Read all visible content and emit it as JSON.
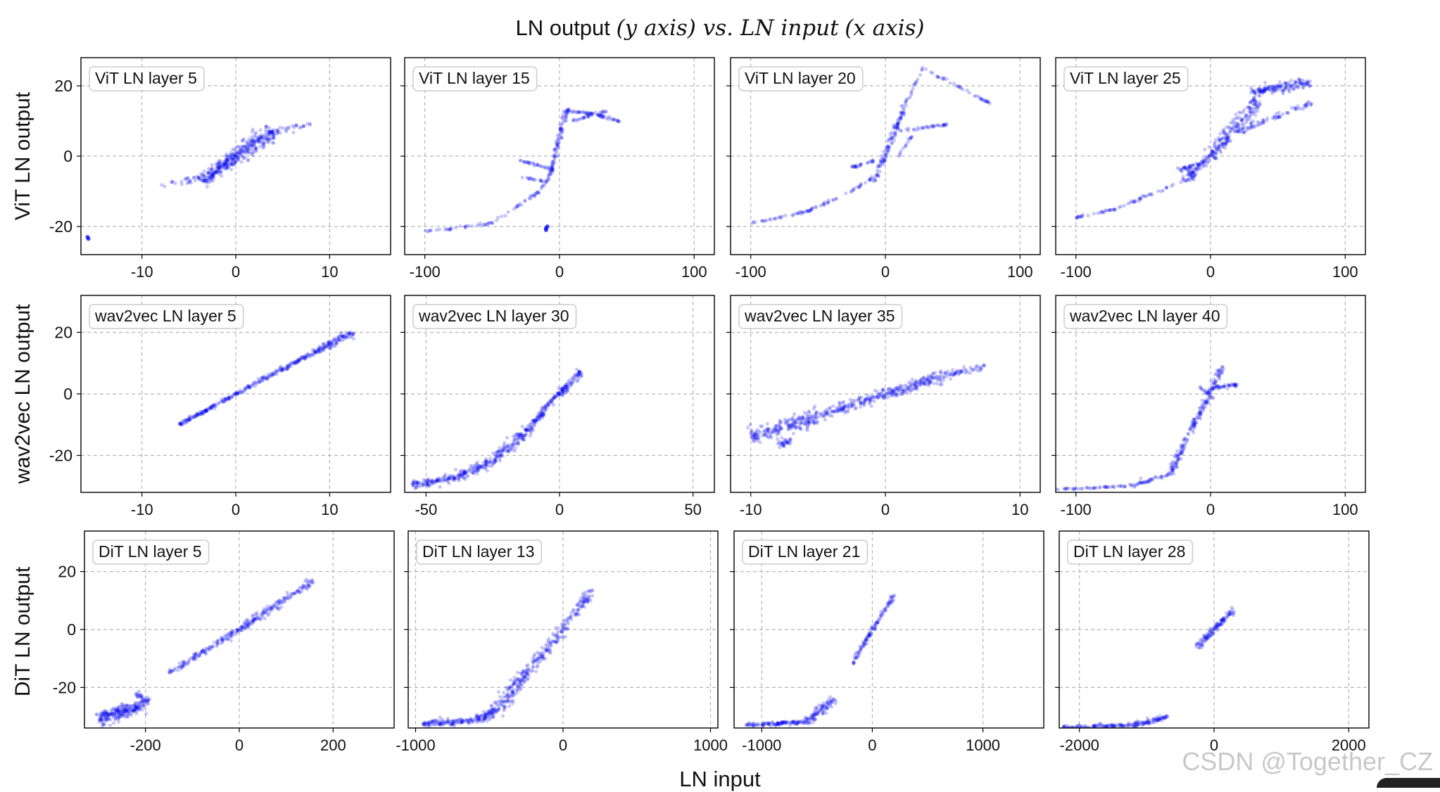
{
  "figure": {
    "title_main": "LN output",
    "title_y": "(y axis) vs. LN input",
    "title_x": "(x axis)",
    "xlabel": "LN input",
    "watermark": "CSDN @Together_CZ"
  },
  "colors": {
    "points": "#0000ee",
    "grid": "#b5b5b5",
    "axes": "#000000",
    "label_box": "#cccccc"
  },
  "row_labels": [
    "ViT LN output",
    "wav2vec LN output",
    "DiT LN output"
  ],
  "chart_data": [
    {
      "type": "scatter",
      "row": 0,
      "col": 0,
      "title": "ViT LN layer 5",
      "xlim": [
        -16.5,
        16.5
      ],
      "ylim": [
        -28,
        28
      ],
      "xticks": [
        -10,
        0,
        10
      ],
      "xticklabels": [
        "-10",
        "0",
        "10"
      ],
      "yticks": [
        -20,
        0,
        20
      ],
      "yticklabels": [
        "-20",
        "0",
        "20"
      ],
      "segments": [
        {
          "x": [
            -3.5,
            0
          ],
          "y": [
            -7,
            0
          ],
          "w": 3,
          "n": 180
        },
        {
          "x": [
            0,
            4
          ],
          "y": [
            0,
            7
          ],
          "w": 3.5,
          "n": 180
        },
        {
          "x": [
            -8,
            -3
          ],
          "y": [
            -8.5,
            -6
          ],
          "w": 1.5,
          "n": 30
        },
        {
          "x": [
            4,
            8
          ],
          "y": [
            7,
            9
          ],
          "w": 1.5,
          "n": 30
        }
      ],
      "points": [
        [
          -15.8,
          -23
        ],
        [
          -15.7,
          -23.5
        ]
      ]
    },
    {
      "type": "scatter",
      "row": 0,
      "col": 1,
      "title": "ViT LN layer 15",
      "xlim": [
        -115,
        115
      ],
      "ylim": [
        -28,
        28
      ],
      "xticks": [
        -100,
        0,
        100
      ],
      "xticklabels": [
        "-100",
        "0",
        "100"
      ],
      "yticks": [
        -20,
        0,
        20
      ],
      "yticklabels": [],
      "segments": [
        {
          "x": [
            -100,
            -50
          ],
          "y": [
            -21.5,
            -19
          ],
          "w": 0.5,
          "n": 35
        },
        {
          "x": [
            -50,
            -15
          ],
          "y": [
            -19,
            -10
          ],
          "w": 0.6,
          "n": 30
        },
        {
          "x": [
            -15,
            -5
          ],
          "y": [
            -10,
            -4
          ],
          "w": 0.6,
          "n": 15
        },
        {
          "x": [
            -7,
            6
          ],
          "y": [
            -5,
            14
          ],
          "w": 1.2,
          "n": 90
        },
        {
          "x": [
            5,
            25
          ],
          "y": [
            13,
            12
          ],
          "w": 0.6,
          "n": 30
        },
        {
          "x": [
            25,
            45
          ],
          "y": [
            12,
            10
          ],
          "w": 0.6,
          "n": 30
        },
        {
          "x": [
            10,
            35
          ],
          "y": [
            10,
            13
          ],
          "w": 0.5,
          "n": 25
        },
        {
          "x": [
            -30,
            -5
          ],
          "y": [
            -1,
            -4
          ],
          "w": 0.6,
          "n": 30
        },
        {
          "x": [
            -28,
            -12
          ],
          "y": [
            -6,
            -7
          ],
          "w": 0.5,
          "n": 15
        }
      ],
      "points": [
        [
          -10,
          -20.5
        ],
        [
          -10,
          -21
        ],
        [
          -9,
          -20
        ]
      ]
    },
    {
      "type": "scatter",
      "row": 0,
      "col": 2,
      "title": "ViT LN layer 20",
      "xlim": [
        -115,
        115
      ],
      "ylim": [
        -28,
        28
      ],
      "xticks": [
        -100,
        0,
        100
      ],
      "xticklabels": [
        "-100",
        "0",
        "100"
      ],
      "yticks": [
        -20,
        0,
        20
      ],
      "yticklabels": [],
      "segments": [
        {
          "x": [
            -100,
            -60
          ],
          "y": [
            -19,
            -16
          ],
          "w": 0.5,
          "n": 30
        },
        {
          "x": [
            -60,
            -25
          ],
          "y": [
            -16,
            -10
          ],
          "w": 0.6,
          "n": 30
        },
        {
          "x": [
            -25,
            -5
          ],
          "y": [
            -10,
            -5
          ],
          "w": 0.6,
          "n": 20
        },
        {
          "x": [
            -8,
            15
          ],
          "y": [
            -7,
            15
          ],
          "w": 1.3,
          "n": 110
        },
        {
          "x": [
            15,
            28
          ],
          "y": [
            15,
            25
          ],
          "w": 0.6,
          "n": 20
        },
        {
          "x": [
            28,
            78
          ],
          "y": [
            25,
            15
          ],
          "w": 0.6,
          "n": 40
        },
        {
          "x": [
            10,
            45
          ],
          "y": [
            7,
            9
          ],
          "w": 0.6,
          "n": 35
        },
        {
          "x": [
            -25,
            -5
          ],
          "y": [
            -3,
            -1
          ],
          "w": 0.6,
          "n": 25
        },
        {
          "x": [
            10,
            20
          ],
          "y": [
            0,
            6
          ],
          "w": 0.5,
          "n": 15
        }
      ],
      "points": []
    },
    {
      "type": "scatter",
      "row": 0,
      "col": 3,
      "title": "ViT LN layer 25",
      "xlim": [
        -115,
        115
      ],
      "ylim": [
        -28,
        28
      ],
      "xticks": [
        -100,
        0,
        100
      ],
      "xticklabels": [
        "-100",
        "0",
        "100"
      ],
      "yticks": [
        -20,
        0,
        20
      ],
      "yticklabels": [],
      "segments": [
        {
          "x": [
            -100,
            -70
          ],
          "y": [
            -17.5,
            -15
          ],
          "w": 0.6,
          "n": 30
        },
        {
          "x": [
            -70,
            -20
          ],
          "y": [
            -15,
            -7
          ],
          "w": 0.6,
          "n": 35
        },
        {
          "x": [
            -20,
            0
          ],
          "y": [
            -7,
            0
          ],
          "w": 2,
          "n": 80
        },
        {
          "x": [
            0,
            35
          ],
          "y": [
            0,
            16
          ],
          "w": 3,
          "n": 180
        },
        {
          "x": [
            30,
            75
          ],
          "y": [
            18,
            21
          ],
          "w": 2,
          "n": 150
        },
        {
          "x": [
            40,
            75
          ],
          "y": [
            10,
            15
          ],
          "w": 1.5,
          "n": 40
        },
        {
          "x": [
            20,
            40
          ],
          "y": [
            7,
            10
          ],
          "w": 1.5,
          "n": 40
        },
        {
          "x": [
            -25,
            -5
          ],
          "y": [
            -4,
            -2
          ],
          "w": 1,
          "n": 30
        }
      ],
      "points": []
    },
    {
      "type": "scatter",
      "row": 1,
      "col": 0,
      "title": "wav2vec LN layer 5",
      "xlim": [
        -16.5,
        16.5
      ],
      "ylim": [
        -32,
        32
      ],
      "xticks": [
        -10,
        0,
        10
      ],
      "xticklabels": [
        "-10",
        "0",
        "10"
      ],
      "yticks": [
        -20,
        0,
        20
      ],
      "yticklabels": [
        "-20",
        "0",
        "20"
      ],
      "segments": [
        {
          "x": [
            -6,
            0
          ],
          "y": [
            -10,
            0
          ],
          "w": 0.7,
          "n": 120
        },
        {
          "x": [
            0,
            8
          ],
          "y": [
            0,
            13
          ],
          "w": 1,
          "n": 140
        },
        {
          "x": [
            8,
            12.5
          ],
          "y": [
            13,
            20
          ],
          "w": 1.6,
          "n": 110
        }
      ],
      "points": []
    },
    {
      "type": "scatter",
      "row": 1,
      "col": 1,
      "title": "wav2vec LN layer 30",
      "xlim": [
        -58,
        58
      ],
      "ylim": [
        -32,
        32
      ],
      "xticks": [
        -50,
        0,
        50
      ],
      "xticklabels": [
        "-50",
        "0",
        "50"
      ],
      "yticks": [
        -20,
        0,
        20
      ],
      "yticklabels": [],
      "segments": [
        {
          "x": [
            -55,
            -40
          ],
          "y": [
            -29.5,
            -27.5
          ],
          "w": 1.5,
          "n": 90
        },
        {
          "x": [
            -40,
            -25
          ],
          "y": [
            -27.5,
            -22
          ],
          "w": 2,
          "n": 110
        },
        {
          "x": [
            -25,
            -10
          ],
          "y": [
            -22,
            -10
          ],
          "w": 2.5,
          "n": 130
        },
        {
          "x": [
            -10,
            -3
          ],
          "y": [
            -10,
            -2
          ],
          "w": 1.5,
          "n": 70
        },
        {
          "x": [
            -3,
            0
          ],
          "y": [
            -2,
            0
          ],
          "w": 0.8,
          "n": 20
        },
        {
          "x": [
            0,
            8
          ],
          "y": [
            0,
            7
          ],
          "w": 1.6,
          "n": 80
        }
      ],
      "points": []
    },
    {
      "type": "scatter",
      "row": 1,
      "col": 2,
      "title": "wav2vec LN layer 35",
      "xlim": [
        -11.5,
        11.5
      ],
      "ylim": [
        -32,
        32
      ],
      "xticks": [
        -10,
        0,
        10
      ],
      "xticklabels": [
        "-10",
        "0",
        "10"
      ],
      "yticks": [
        -20,
        0,
        20
      ],
      "yticklabels": [],
      "segments": [
        {
          "x": [
            -10,
            -5
          ],
          "y": [
            -14,
            -7
          ],
          "w": 3.5,
          "n": 200
        },
        {
          "x": [
            -5,
            0
          ],
          "y": [
            -7,
            0
          ],
          "w": 2.5,
          "n": 140
        },
        {
          "x": [
            0,
            5
          ],
          "y": [
            0,
            6.5
          ],
          "w": 2.5,
          "n": 160
        },
        {
          "x": [
            5,
            7.5
          ],
          "y": [
            6.5,
            9
          ],
          "w": 1.5,
          "n": 40
        },
        {
          "x": [
            -8,
            -7
          ],
          "y": [
            -17,
            -15
          ],
          "w": 1.5,
          "n": 30
        }
      ],
      "points": []
    },
    {
      "type": "scatter",
      "row": 1,
      "col": 3,
      "title": "wav2vec LN layer 40",
      "xlim": [
        -115,
        115
      ],
      "ylim": [
        -32,
        32
      ],
      "xticks": [
        -100,
        0,
        100
      ],
      "xticklabels": [
        "-100",
        "0",
        "100"
      ],
      "yticks": [
        -20,
        0,
        20
      ],
      "yticklabels": [],
      "segments": [
        {
          "x": [
            -115,
            -60
          ],
          "y": [
            -31,
            -30
          ],
          "w": 0.4,
          "n": 45
        },
        {
          "x": [
            -60,
            -30
          ],
          "y": [
            -30,
            -26
          ],
          "w": 0.8,
          "n": 45
        },
        {
          "x": [
            -30,
            -15
          ],
          "y": [
            -26,
            -12
          ],
          "w": 1.5,
          "n": 70
        },
        {
          "x": [
            -15,
            0
          ],
          "y": [
            -12,
            0
          ],
          "w": 1.5,
          "n": 70
        },
        {
          "x": [
            0,
            8
          ],
          "y": [
            0,
            9
          ],
          "w": 1.2,
          "n": 45
        },
        {
          "x": [
            2,
            20
          ],
          "y": [
            2,
            3
          ],
          "w": 0.8,
          "n": 35
        },
        {
          "x": [
            -8,
            0
          ],
          "y": [
            2,
            0
          ],
          "w": 0.8,
          "n": 15
        }
      ],
      "points": []
    },
    {
      "type": "scatter",
      "row": 2,
      "col": 0,
      "title": "DiT LN layer 5",
      "xlim": [
        -330,
        330
      ],
      "ylim": [
        -34,
        34
      ],
      "xticks": [
        -200,
        0,
        200
      ],
      "xticklabels": [
        "-200",
        "0",
        "200"
      ],
      "yticks": [
        -20,
        0,
        20
      ],
      "yticklabels": [
        "-20",
        "0",
        "20"
      ],
      "segments": [
        {
          "x": [
            -300,
            -200
          ],
          "y": [
            -31,
            -26
          ],
          "w": 3,
          "n": 220
        },
        {
          "x": [
            -220,
            -190
          ],
          "y": [
            -22,
            -25
          ],
          "w": 1.5,
          "n": 30
        },
        {
          "x": [
            -150,
            0
          ],
          "y": [
            -15,
            0
          ],
          "w": 1.2,
          "n": 120
        },
        {
          "x": [
            0,
            160
          ],
          "y": [
            0,
            17
          ],
          "w": 1.8,
          "n": 150
        }
      ],
      "points": []
    },
    {
      "type": "scatter",
      "row": 2,
      "col": 1,
      "title": "DiT LN layer 13",
      "xlim": [
        -1050,
        1050
      ],
      "ylim": [
        -34,
        34
      ],
      "xticks": [
        -1000,
        0,
        1000
      ],
      "xticklabels": [
        "-1000",
        "0",
        "1000"
      ],
      "yticks": [
        -20,
        0,
        20
      ],
      "yticklabels": [],
      "segments": [
        {
          "x": [
            -950,
            -600
          ],
          "y": [
            -32.5,
            -31.5
          ],
          "w": 1.4,
          "n": 110
        },
        {
          "x": [
            -600,
            -450
          ],
          "y": [
            -31.5,
            -28
          ],
          "w": 2.2,
          "n": 80
        },
        {
          "x": [
            -450,
            -250
          ],
          "y": [
            -28,
            -15
          ],
          "w": 3,
          "n": 120
        },
        {
          "x": [
            -250,
            0
          ],
          "y": [
            -15,
            0
          ],
          "w": 2.5,
          "n": 100
        },
        {
          "x": [
            0,
            200
          ],
          "y": [
            0,
            14
          ],
          "w": 2.2,
          "n": 80
        }
      ],
      "points": []
    },
    {
      "type": "scatter",
      "row": 2,
      "col": 2,
      "title": "DiT LN layer 21",
      "xlim": [
        -1250,
        1550
      ],
      "ylim": [
        -34,
        34
      ],
      "xticks": [
        -1000,
        0,
        1000
      ],
      "xticklabels": [
        "-1000",
        "0",
        "1000"
      ],
      "yticks": [
        -20,
        0,
        20
      ],
      "yticklabels": [],
      "segments": [
        {
          "x": [
            -1150,
            -600
          ],
          "y": [
            -33,
            -32
          ],
          "w": 0.9,
          "n": 110
        },
        {
          "x": [
            -600,
            -350
          ],
          "y": [
            -32,
            -24
          ],
          "w": 1.8,
          "n": 90
        },
        {
          "x": [
            -180,
            0
          ],
          "y": [
            -12,
            0
          ],
          "w": 0.9,
          "n": 55
        },
        {
          "x": [
            0,
            200
          ],
          "y": [
            0,
            12
          ],
          "w": 0.9,
          "n": 55
        }
      ],
      "points": []
    },
    {
      "type": "scatter",
      "row": 2,
      "col": 3,
      "title": "DiT LN layer 28",
      "xlim": [
        -2300,
        2300
      ],
      "ylim": [
        -34,
        34
      ],
      "xticks": [
        -2000,
        0,
        2000
      ],
      "xticklabels": [
        "-2000",
        "0",
        "2000"
      ],
      "yticks": [
        -20,
        0,
        20
      ],
      "yticklabels": [],
      "segments": [
        {
          "x": [
            -2250,
            -1200
          ],
          "y": [
            -34,
            -33
          ],
          "w": 0.9,
          "n": 110
        },
        {
          "x": [
            -1200,
            -700
          ],
          "y": [
            -33,
            -30
          ],
          "w": 1.3,
          "n": 80
        },
        {
          "x": [
            -250,
            0
          ],
          "y": [
            -6,
            0
          ],
          "w": 1.5,
          "n": 55
        },
        {
          "x": [
            0,
            300
          ],
          "y": [
            0,
            7
          ],
          "w": 1.5,
          "n": 60
        }
      ],
      "points": []
    }
  ]
}
